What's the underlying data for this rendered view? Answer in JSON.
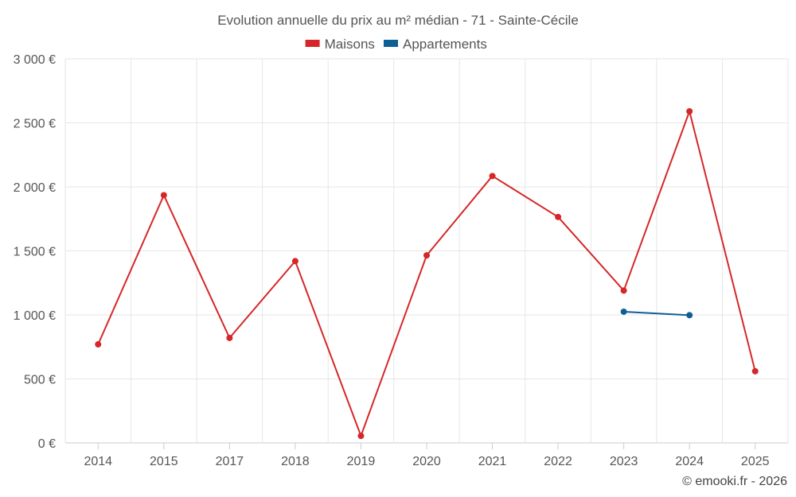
{
  "chart_data": {
    "type": "line",
    "title": "Evolution annuelle du prix au m² médian - 71 - Sainte-Cécile",
    "categories": [
      "2014",
      "2015",
      "2017",
      "2018",
      "2019",
      "2020",
      "2021",
      "2022",
      "2023",
      "2024",
      "2025"
    ],
    "series": [
      {
        "name": "Maisons",
        "color": "#d62728",
        "values": [
          770,
          1935,
          820,
          1420,
          55,
          1465,
          2085,
          1765,
          1190,
          2590,
          560
        ]
      },
      {
        "name": "Appartements",
        "color": "#0f5f97",
        "values": [
          null,
          null,
          null,
          null,
          null,
          null,
          null,
          null,
          1025,
          998,
          null
        ]
      }
    ],
    "y_ticks": [
      "0 €",
      "500 €",
      "1 000 €",
      "1 500 €",
      "2 000 €",
      "2 500 €",
      "3 000 €"
    ],
    "ylim": [
      0,
      3000
    ],
    "xlabel": "",
    "ylabel": "",
    "grid": true,
    "legend_position": "top-center"
  },
  "credit": "© emooki.fr - 2026"
}
